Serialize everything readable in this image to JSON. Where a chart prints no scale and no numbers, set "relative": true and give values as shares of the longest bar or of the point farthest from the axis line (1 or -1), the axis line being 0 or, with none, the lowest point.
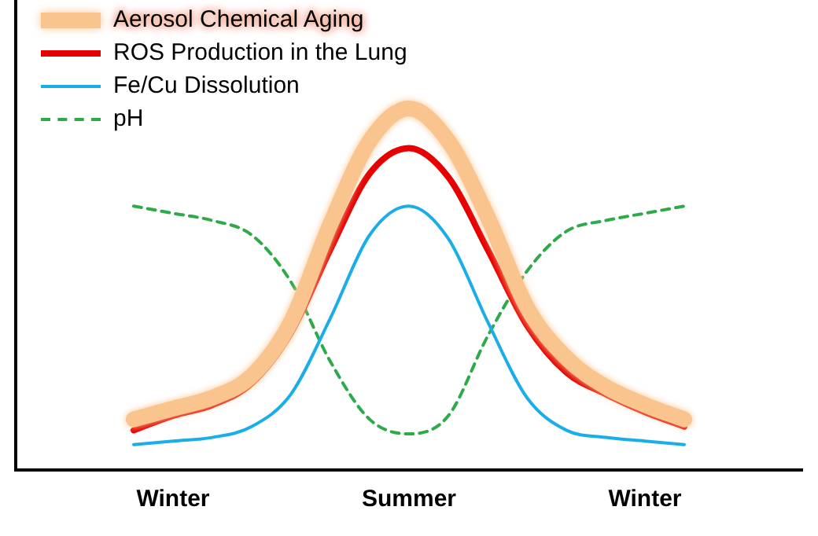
{
  "chart_data": {
    "type": "line",
    "relative": true,
    "legend": "top left",
    "grid": false,
    "marker": "none",
    "categories": [
      null,
      null,
      null,
      null,
      "Winter",
      null,
      null,
      null,
      null,
      null,
      "Summer",
      null,
      null,
      null,
      null,
      null,
      "Winter",
      null,
      null,
      null,
      null
    ],
    "series": [
      {
        "name": "Aerosol Chemical Aging",
        "color": "#f9c48e",
        "values": [
          null,
          null,
          null,
          0.14,
          0.17,
          0.2,
          0.26,
          0.41,
          0.68,
          0.91,
          1.0,
          0.91,
          0.7,
          0.45,
          0.31,
          0.23,
          0.18,
          0.14,
          null,
          null,
          null
        ]
      },
      {
        "name": "ROS Production in the Lung",
        "color": "#e60000",
        "values": [
          null,
          null,
          null,
          0.11,
          0.15,
          0.18,
          0.24,
          0.38,
          0.61,
          0.82,
          0.89,
          0.81,
          0.61,
          0.4,
          0.27,
          0.21,
          0.16,
          0.12,
          null,
          null,
          null
        ]
      },
      {
        "name": "Fe/Cu Dissolution",
        "color": "#1aaee8",
        "values": [
          null,
          null,
          null,
          0.07,
          0.08,
          0.09,
          0.12,
          0.21,
          0.42,
          0.65,
          0.73,
          0.64,
          0.41,
          0.2,
          0.11,
          0.09,
          0.08,
          0.07,
          null,
          null,
          null
        ]
      },
      {
        "name": "pH",
        "color": "#2eaa4a",
        "line_style": "dashed",
        "values": [
          null,
          null,
          null,
          0.73,
          0.71,
          0.69,
          0.65,
          0.52,
          0.3,
          0.14,
          0.1,
          0.15,
          0.37,
          0.55,
          0.66,
          0.69,
          0.71,
          0.73,
          null,
          null,
          null
        ]
      }
    ]
  }
}
